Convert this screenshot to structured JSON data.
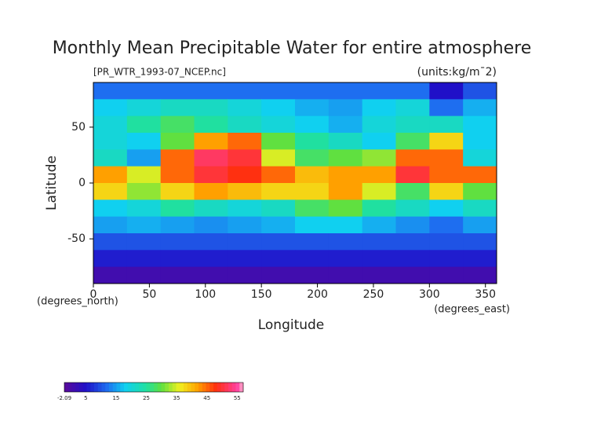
{
  "chart_data": {
    "type": "heatmap",
    "title": "Monthly Mean Precipitable Water for entire atmosphere",
    "subtitle": "[PR_WTR_1993-07_NCEP.nc]",
    "units": "(units:kg/m¯2)",
    "x_label": "Longitude",
    "y_label": "Latitude",
    "x_unit": "(degrees_east)",
    "y_unit": "(degrees_north)",
    "xlim": [
      0,
      360
    ],
    "ylim": [
      -90,
      90
    ],
    "xticks": [
      0,
      50,
      100,
      150,
      200,
      250,
      300,
      350
    ],
    "yticks": [
      -50,
      0,
      50
    ],
    "x": [
      15,
      45,
      75,
      105,
      135,
      165,
      195,
      225,
      255,
      285,
      315,
      345
    ],
    "y": [
      82.5,
      67.5,
      52.5,
      37.5,
      22.5,
      7.5,
      -7.5,
      -22.5,
      -37.5,
      -52.5,
      -67.5,
      -82.5
    ],
    "values": [
      [
        12,
        12,
        12,
        12,
        12,
        12,
        12,
        12,
        12,
        12,
        5,
        10
      ],
      [
        18,
        20,
        22,
        22,
        20,
        18,
        16,
        15,
        18,
        20,
        12,
        16
      ],
      [
        20,
        25,
        28,
        25,
        22,
        20,
        18,
        16,
        20,
        22,
        22,
        18
      ],
      [
        20,
        18,
        30,
        42,
        45,
        30,
        25,
        22,
        18,
        28,
        38,
        18
      ],
      [
        22,
        15,
        45,
        52,
        50,
        35,
        28,
        30,
        32,
        45,
        45,
        20
      ],
      [
        42,
        35,
        45,
        50,
        48,
        45,
        40,
        42,
        42,
        50,
        45,
        45
      ],
      [
        38,
        32,
        38,
        42,
        40,
        38,
        38,
        42,
        35,
        28,
        38,
        30
      ],
      [
        18,
        20,
        25,
        22,
        20,
        22,
        28,
        30,
        25,
        22,
        18,
        22
      ],
      [
        15,
        16,
        15,
        14,
        15,
        16,
        18,
        18,
        16,
        14,
        12,
        15
      ],
      [
        10,
        10,
        10,
        10,
        10,
        10,
        10,
        10,
        10,
        10,
        10,
        10
      ],
      [
        6,
        6,
        6,
        6,
        6,
        6,
        6,
        6,
        6,
        6,
        6,
        6
      ],
      [
        1,
        1,
        1,
        1,
        1,
        1,
        1,
        1,
        1,
        1,
        1,
        1
      ]
    ],
    "colorbar": {
      "lim": [
        -2.09,
        57
      ],
      "ticks": [
        -2.09,
        5,
        15,
        25,
        35,
        45,
        55
      ],
      "stops": [
        [
          -2.09,
          "#5a0a9a"
        ],
        [
          5,
          "#2010c8"
        ],
        [
          12,
          "#1e6ef0"
        ],
        [
          18,
          "#10d0f0"
        ],
        [
          25,
          "#20e0a0"
        ],
        [
          30,
          "#60e040"
        ],
        [
          36,
          "#f0f020"
        ],
        [
          42,
          "#ffa000"
        ],
        [
          48,
          "#ff3010"
        ],
        [
          55,
          "#ff40a0"
        ],
        [
          57,
          "#ffb0d0"
        ]
      ]
    }
  }
}
